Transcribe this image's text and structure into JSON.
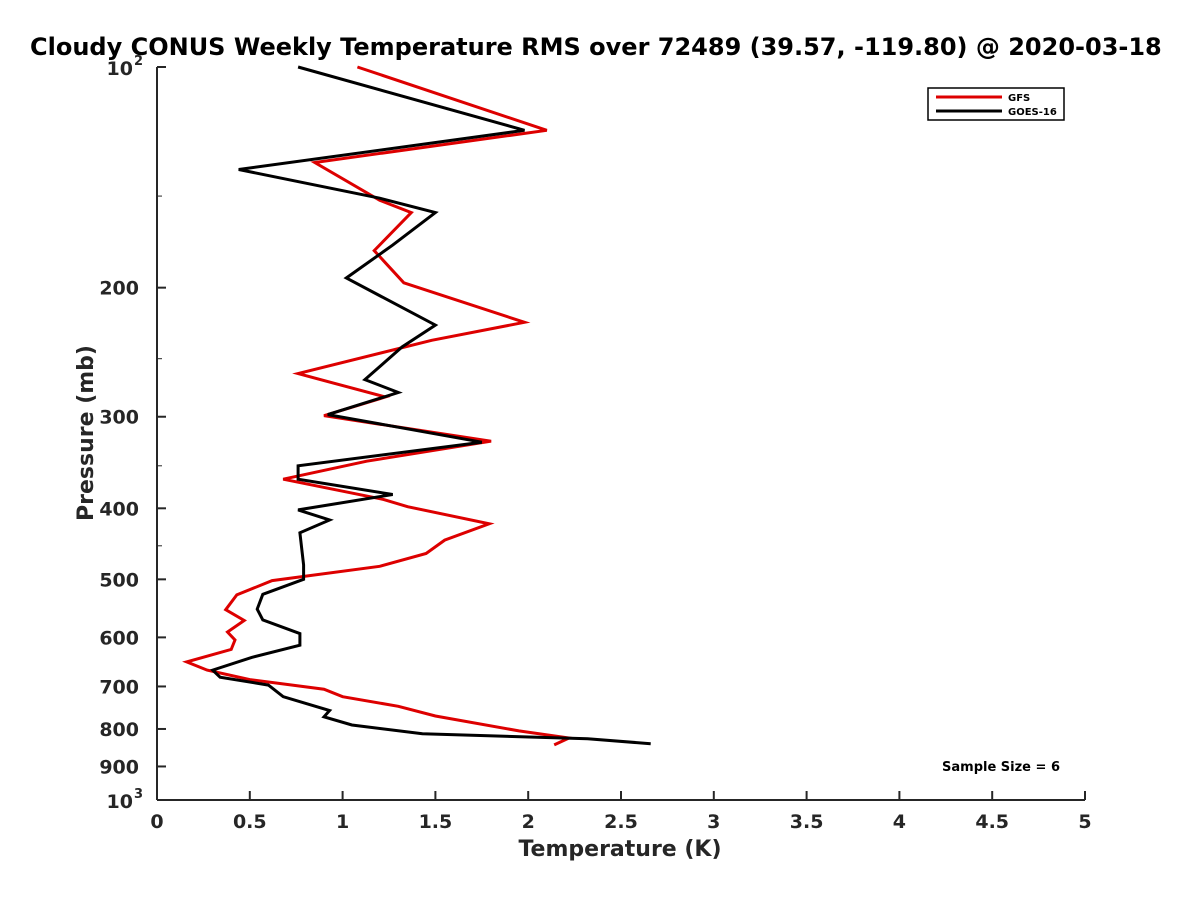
{
  "chart_data": {
    "type": "line",
    "title": "Cloudy CONUS Weekly Temperature RMS over 72489 (39.57, -119.80) @ 2020-03-18",
    "xlabel": "Temperature (K)",
    "ylabel": "Pressure (mb)",
    "xlim": [
      0,
      5
    ],
    "ylim": [
      100,
      1000
    ],
    "y_scale": "log",
    "y_reversed": true,
    "x_ticks": [
      "0",
      "0.5",
      "1",
      "1.5",
      "2",
      "2.5",
      "3",
      "3.5",
      "4",
      "4.5",
      "5"
    ],
    "y_ticks": [
      {
        "value": 100,
        "label": "10",
        "exp": "2"
      },
      {
        "value": 200,
        "label": "200"
      },
      {
        "value": 300,
        "label": "300"
      },
      {
        "value": 400,
        "label": "400"
      },
      {
        "value": 500,
        "label": "500"
      },
      {
        "value": 600,
        "label": "600"
      },
      {
        "value": 700,
        "label": "700"
      },
      {
        "value": 800,
        "label": "800"
      },
      {
        "value": 900,
        "label": "900"
      },
      {
        "value": 1000,
        "label": "10",
        "exp": "3"
      }
    ],
    "grid": false,
    "legend_position": "top-right",
    "annotation": "Sample Size = 6",
    "series": [
      {
        "name": "GFS",
        "color": "#dd0000",
        "points": [
          [
            1.08,
            100
          ],
          [
            2.1,
            122
          ],
          [
            0.85,
            135
          ],
          [
            1.2,
            152
          ],
          [
            1.37,
            158
          ],
          [
            1.17,
            178
          ],
          [
            1.33,
            197
          ],
          [
            1.98,
            223
          ],
          [
            1.48,
            236
          ],
          [
            0.76,
            262
          ],
          [
            1.23,
            282
          ],
          [
            0.9,
            299
          ],
          [
            1.8,
            324
          ],
          [
            1.13,
            345
          ],
          [
            0.68,
            365
          ],
          [
            1.22,
            389
          ],
          [
            1.35,
            398
          ],
          [
            1.79,
            420
          ],
          [
            1.55,
            442
          ],
          [
            1.45,
            461
          ],
          [
            1.2,
            480
          ],
          [
            0.62,
            502
          ],
          [
            0.43,
            525
          ],
          [
            0.37,
            550
          ],
          [
            0.47,
            569
          ],
          [
            0.38,
            590
          ],
          [
            0.42,
            605
          ],
          [
            0.4,
            623
          ],
          [
            0.16,
            648
          ],
          [
            0.27,
            665
          ],
          [
            0.5,
            685
          ],
          [
            0.9,
            706
          ],
          [
            1.0,
            723
          ],
          [
            1.3,
            745
          ],
          [
            1.5,
            768
          ],
          [
            1.95,
            805
          ],
          [
            2.22,
            823
          ],
          [
            2.14,
            841
          ]
        ]
      },
      {
        "name": "GOES-16",
        "color": "#000000",
        "points": [
          [
            0.76,
            100
          ],
          [
            1.98,
            122
          ],
          [
            0.44,
            138
          ],
          [
            1.2,
            151
          ],
          [
            1.5,
            158
          ],
          [
            1.27,
            175
          ],
          [
            1.02,
            194
          ],
          [
            1.5,
            225
          ],
          [
            1.32,
            241
          ],
          [
            1.12,
            267
          ],
          [
            1.3,
            278
          ],
          [
            0.92,
            298
          ],
          [
            1.75,
            325
          ],
          [
            0.76,
            350
          ],
          [
            0.76,
            365
          ],
          [
            1.27,
            383
          ],
          [
            0.76,
            402
          ],
          [
            0.93,
            415
          ],
          [
            0.77,
            432
          ],
          [
            0.79,
            478
          ],
          [
            0.79,
            500
          ],
          [
            0.57,
            524
          ],
          [
            0.54,
            549
          ],
          [
            0.57,
            568
          ],
          [
            0.77,
            593
          ],
          [
            0.77,
            615
          ],
          [
            0.51,
            639
          ],
          [
            0.3,
            665
          ],
          [
            0.34,
            680
          ],
          [
            0.6,
            697
          ],
          [
            0.68,
            723
          ],
          [
            0.93,
            755
          ],
          [
            0.9,
            770
          ],
          [
            1.05,
            790
          ],
          [
            1.43,
            812
          ],
          [
            2.32,
            825
          ],
          [
            2.66,
            838
          ]
        ]
      }
    ]
  }
}
